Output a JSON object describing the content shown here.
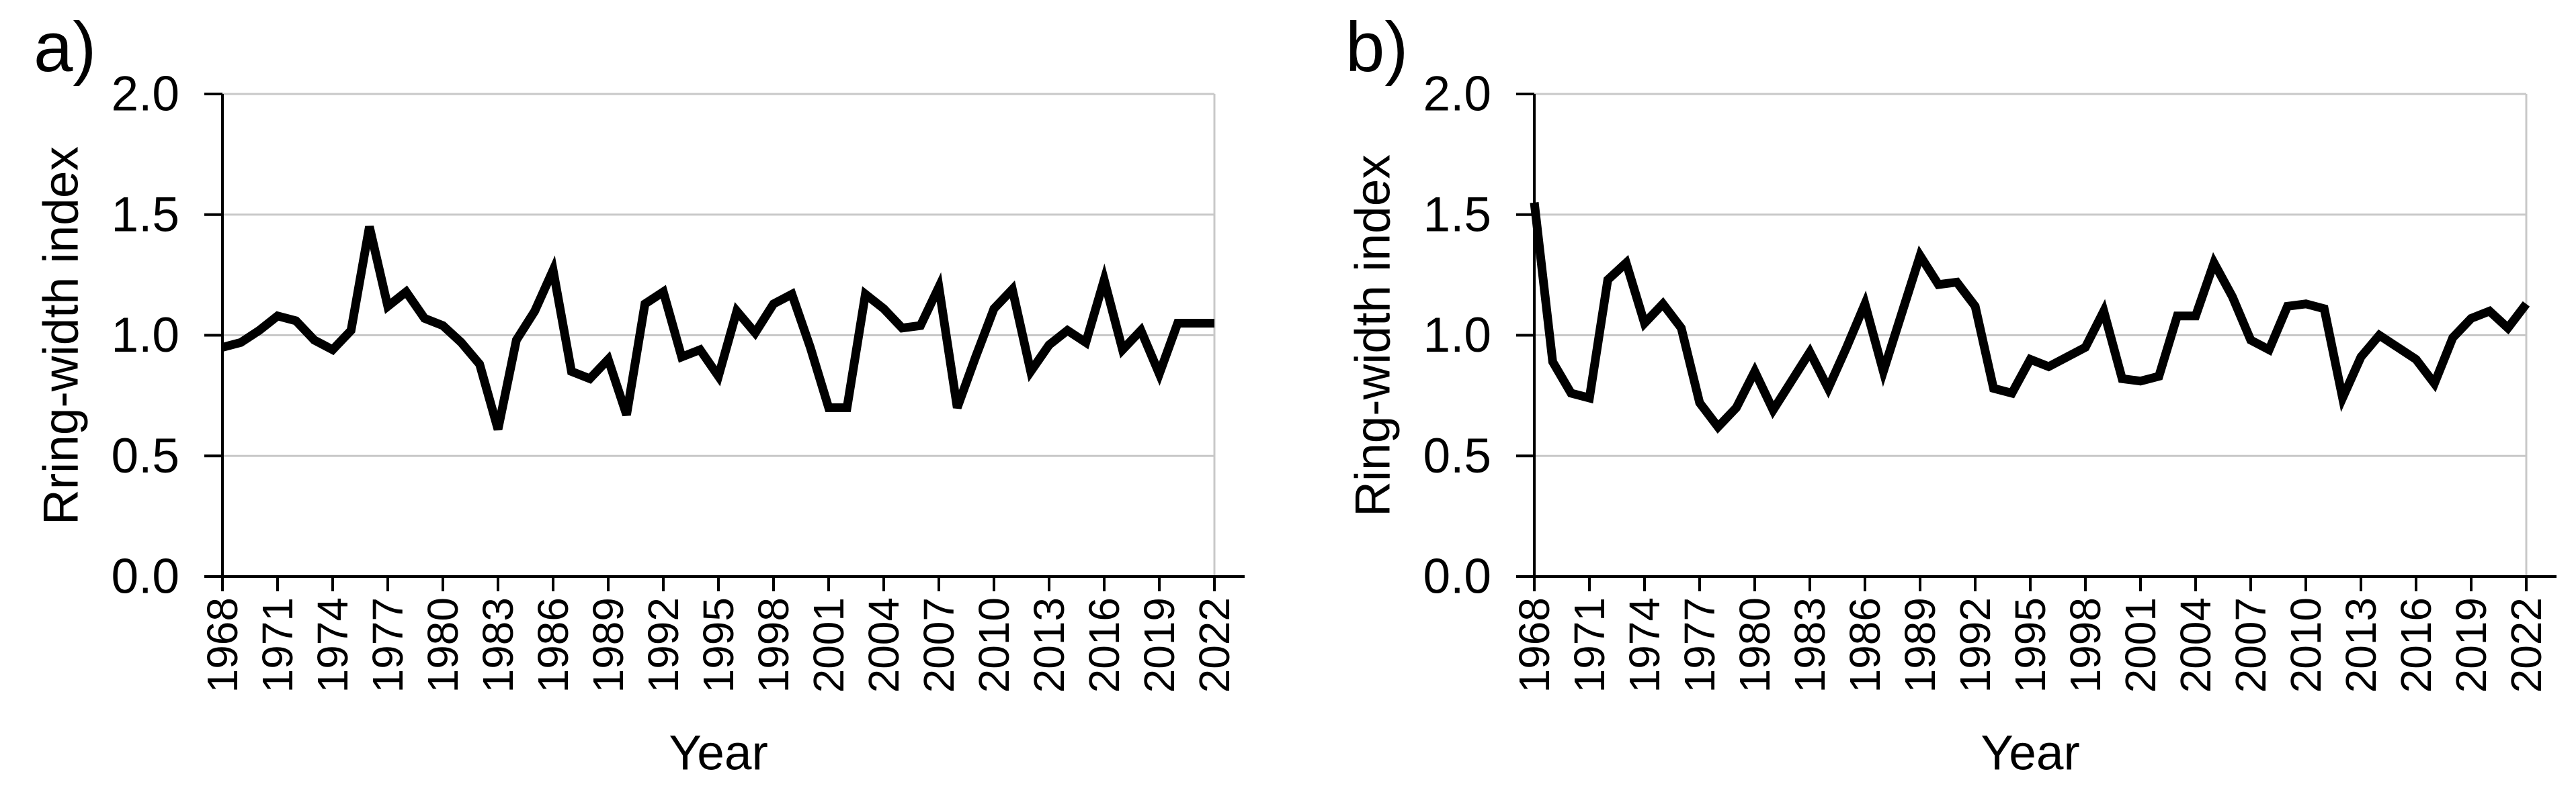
{
  "figure_title": "",
  "chart_data": [
    {
      "type": "line",
      "panel_label": "a)",
      "xlabel": "Year",
      "ylabel": "Rring-width index",
      "ylim": [
        0.0,
        2.0
      ],
      "y_tick_labels": [
        "0.0",
        "0.5",
        "1.0",
        "1.5",
        "2.0"
      ],
      "x_tick_labels": [
        "1968",
        "1971",
        "1974",
        "1977",
        "1980",
        "1983",
        "1986",
        "1989",
        "1992",
        "1995",
        "1998",
        "2001",
        "2004",
        "2007",
        "2010",
        "2013",
        "2016",
        "2019",
        "2022"
      ],
      "grid": "horizontal",
      "legend": "none",
      "line_color": "#000000",
      "gridline_color": "#C8C8C8",
      "years": [
        1968,
        1969,
        1970,
        1971,
        1972,
        1973,
        1974,
        1975,
        1976,
        1977,
        1978,
        1979,
        1980,
        1981,
        1982,
        1983,
        1984,
        1985,
        1986,
        1987,
        1988,
        1989,
        1990,
        1991,
        1992,
        1993,
        1994,
        1995,
        1996,
        1997,
        1998,
        1999,
        2000,
        2001,
        2002,
        2003,
        2004,
        2005,
        2006,
        2007,
        2008,
        2009,
        2010,
        2011,
        2012,
        2013,
        2014,
        2015,
        2016,
        2017,
        2018,
        2019,
        2020,
        2021,
        2022
      ],
      "values": [
        0.95,
        0.97,
        1.02,
        1.08,
        1.06,
        0.98,
        0.94,
        1.02,
        1.45,
        1.12,
        1.18,
        1.07,
        1.04,
        0.97,
        0.88,
        0.61,
        0.98,
        1.1,
        1.27,
        0.85,
        0.82,
        0.9,
        0.67,
        1.13,
        1.18,
        0.91,
        0.94,
        0.83,
        1.1,
        1.01,
        1.13,
        1.17,
        0.95,
        0.7,
        0.7,
        1.17,
        1.11,
        1.03,
        1.04,
        1.2,
        0.7,
        0.91,
        1.11,
        1.19,
        0.85,
        0.96,
        1.02,
        0.97,
        1.23,
        0.94,
        1.02,
        0.84,
        1.05,
        1.05,
        1.05
      ]
    },
    {
      "type": "line",
      "panel_label": "b)",
      "xlabel": "Year",
      "ylabel": "Ring-width index",
      "ylim": [
        0.0,
        2.0
      ],
      "y_tick_labels": [
        "0.0",
        "0.5",
        "1.0",
        "1.5",
        "2.0"
      ],
      "x_tick_labels": [
        "1968",
        "1971",
        "1974",
        "1977",
        "1980",
        "1983",
        "1986",
        "1989",
        "1992",
        "1995",
        "1998",
        "2001",
        "2004",
        "2007",
        "2010",
        "2013",
        "2016",
        "2019",
        "2022"
      ],
      "grid": "horizontal",
      "legend": "none",
      "line_color": "#000000",
      "gridline_color": "#C8C8C8",
      "years": [
        1968,
        1969,
        1970,
        1971,
        1972,
        1973,
        1974,
        1975,
        1976,
        1977,
        1978,
        1979,
        1980,
        1981,
        1982,
        1983,
        1984,
        1985,
        1986,
        1987,
        1988,
        1989,
        1990,
        1991,
        1992,
        1993,
        1994,
        1995,
        1996,
        1997,
        1998,
        1999,
        2000,
        2001,
        2002,
        2003,
        2004,
        2005,
        2006,
        2007,
        2008,
        2009,
        2010,
        2011,
        2012,
        2013,
        2014,
        2015,
        2016,
        2017,
        2018,
        2019,
        2020,
        2021,
        2022
      ],
      "values": [
        1.55,
        0.89,
        0.76,
        0.74,
        1.23,
        1.3,
        1.05,
        1.13,
        1.03,
        0.72,
        0.62,
        0.7,
        0.85,
        0.69,
        0.81,
        0.93,
        0.78,
        0.95,
        1.13,
        0.85,
        1.09,
        1.33,
        1.21,
        1.22,
        1.12,
        0.78,
        0.76,
        0.9,
        0.87,
        0.91,
        0.95,
        1.1,
        0.82,
        0.81,
        0.83,
        1.08,
        1.08,
        1.3,
        1.16,
        0.98,
        0.94,
        1.12,
        1.13,
        1.11,
        0.74,
        0.91,
        1.0,
        0.95,
        0.9,
        0.8,
        0.99,
        1.07,
        1.1,
        1.03,
        1.13
      ]
    }
  ]
}
